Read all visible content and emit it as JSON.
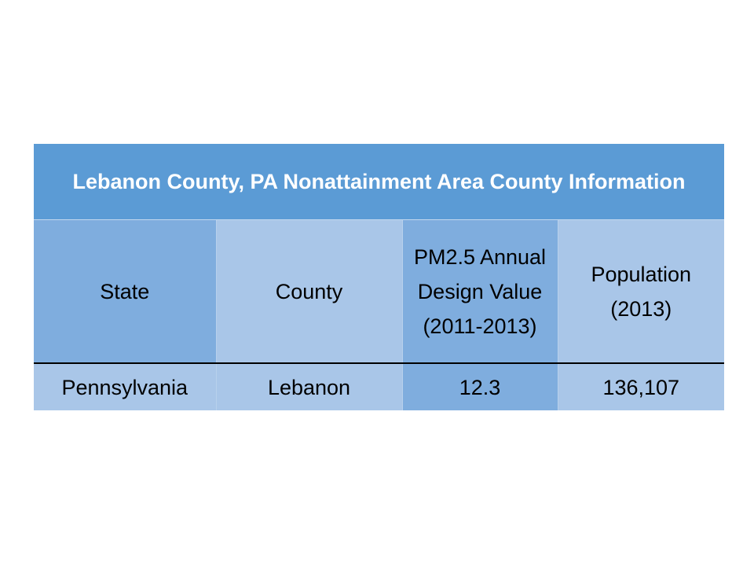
{
  "table": {
    "title": "Lebanon County, PA Nonattainment Area County Information",
    "header": [
      "State",
      "County",
      "PM2.5 Annual Design Value (2011-2013)",
      "Population (2013)"
    ],
    "rows": [
      [
        "Pennsylvania",
        "Lebanon",
        "12.3",
        "136,107"
      ]
    ]
  }
}
